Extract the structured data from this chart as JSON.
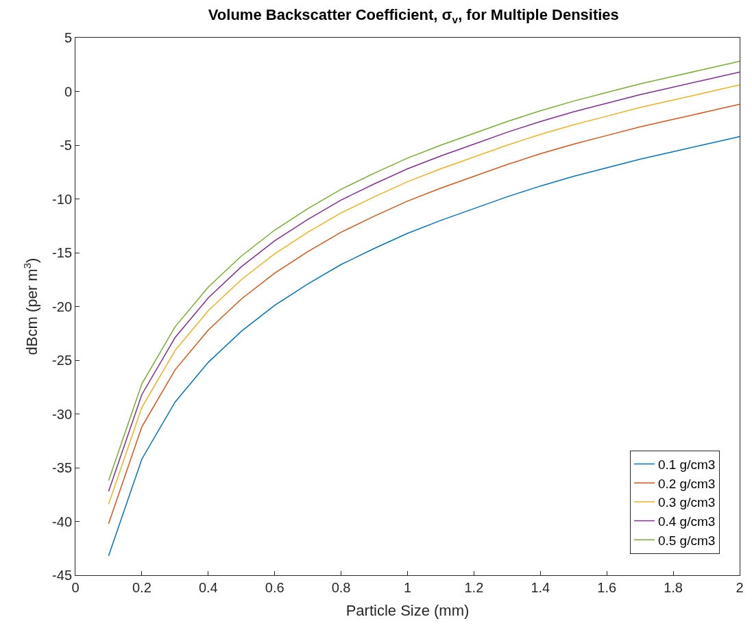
{
  "chart_data": {
    "type": "line",
    "title": "Volume Backscatter Coefficient, σ$_{v}$, for Multiple Densities",
    "xlabel": "Particle Size (mm)",
    "ylabel": "dBcm (per m$^{3}$)",
    "x": [
      0.1,
      0.2,
      0.3,
      0.4,
      0.5,
      0.6,
      0.7,
      0.8,
      0.9,
      1.0,
      1.1,
      1.2,
      1.3,
      1.4,
      1.5,
      1.6,
      1.7,
      1.8,
      1.9,
      2.0
    ],
    "series": [
      {
        "name": "0.1 g/cm3",
        "color": "#0072bd",
        "values": [
          -43.2,
          -34.2,
          -28.9,
          -25.2,
          -22.3,
          -19.9,
          -17.9,
          -16.1,
          -14.6,
          -13.2,
          -12.0,
          -10.9,
          -9.8,
          -8.8,
          -7.9,
          -7.1,
          -6.3,
          -5.6,
          -4.9,
          -4.2
        ]
      },
      {
        "name": "0.2 g/cm3",
        "color": "#d95319",
        "values": [
          -40.2,
          -31.2,
          -25.9,
          -22.2,
          -19.3,
          -16.9,
          -14.9,
          -13.1,
          -11.6,
          -10.2,
          -9.0,
          -7.9,
          -6.8,
          -5.8,
          -4.9,
          -4.1,
          -3.3,
          -2.6,
          -1.9,
          -1.2
        ]
      },
      {
        "name": "0.3 g/cm3",
        "color": "#edb120",
        "values": [
          -38.4,
          -29.4,
          -24.1,
          -20.4,
          -17.5,
          -15.1,
          -13.1,
          -11.3,
          -9.8,
          -8.4,
          -7.2,
          -6.1,
          -5.0,
          -4.0,
          -3.1,
          -2.3,
          -1.5,
          -0.8,
          -0.1,
          0.6
        ]
      },
      {
        "name": "0.4 g/cm3",
        "color": "#7e2f8e",
        "values": [
          -37.2,
          -28.2,
          -22.9,
          -19.2,
          -16.3,
          -13.9,
          -11.9,
          -10.1,
          -8.6,
          -7.2,
          -6.0,
          -4.9,
          -3.8,
          -2.8,
          -1.9,
          -1.1,
          -0.3,
          0.4,
          1.1,
          1.8
        ]
      },
      {
        "name": "0.5 g/cm3",
        "color": "#77ac30",
        "values": [
          -36.2,
          -27.2,
          -21.9,
          -18.2,
          -15.3,
          -12.9,
          -10.9,
          -9.1,
          -7.6,
          -6.2,
          -5.0,
          -3.9,
          -2.8,
          -1.8,
          -0.9,
          -0.1,
          0.7,
          1.4,
          2.1,
          2.8
        ]
      }
    ],
    "xlim": [
      0,
      2
    ],
    "xticks": [
      0,
      0.2,
      0.4,
      0.6,
      0.8,
      1,
      1.2,
      1.4,
      1.6,
      1.8,
      2
    ],
    "ylim": [
      -45,
      5
    ],
    "yticks": [
      -45,
      -40,
      -35,
      -30,
      -25,
      -20,
      -15,
      -10,
      -5,
      0,
      5
    ],
    "legend": "bottom right",
    "marker": "none",
    "line_style": "solid"
  }
}
